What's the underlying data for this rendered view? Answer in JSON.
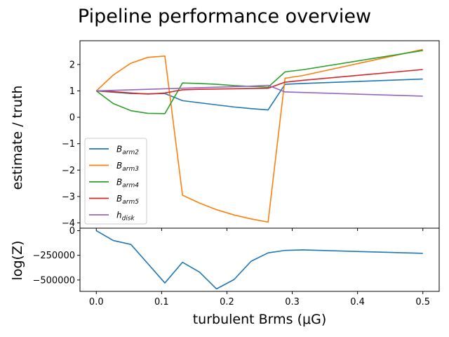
{
  "chart_data": [
    {
      "type": "line",
      "title": "Pipeline performance overview",
      "xlabel": "",
      "ylabel": "estimate / truth",
      "xlim": [
        -0.025,
        0.525
      ],
      "ylim": [
        -4.2,
        2.9
      ],
      "yticks": [
        -4,
        -3,
        -2,
        -1,
        0,
        1,
        2
      ],
      "ytick_labels": [
        "−4",
        "−3",
        "−2",
        "−1",
        "0",
        "1",
        "2"
      ],
      "grid": false,
      "legend": "lower-left",
      "x": [
        0,
        0.026,
        0.053,
        0.079,
        0.105,
        0.132,
        0.158,
        0.184,
        0.211,
        0.237,
        0.263,
        0.289,
        0.316,
        0.5
      ],
      "series": [
        {
          "name": "B",
          "sub": "arm2",
          "color": "#1f77b4",
          "values": [
            1.0,
            0.95,
            0.9,
            0.89,
            0.9,
            0.63,
            0.55,
            0.47,
            0.39,
            0.33,
            0.28,
            1.25,
            1.28,
            1.45
          ]
        },
        {
          "name": "B",
          "sub": "arm3",
          "color": "#ff7f0e",
          "values": [
            1.0,
            1.6,
            2.05,
            2.27,
            2.32,
            -2.95,
            -3.25,
            -3.5,
            -3.7,
            -3.85,
            -3.97,
            1.48,
            1.58,
            2.57
          ]
        },
        {
          "name": "B",
          "sub": "arm4",
          "color": "#2ca02c",
          "values": [
            1.0,
            0.52,
            0.25,
            0.15,
            0.14,
            1.3,
            1.28,
            1.25,
            1.2,
            1.17,
            1.14,
            1.72,
            1.8,
            2.53
          ]
        },
        {
          "name": "B",
          "sub": "arm5",
          "color": "#d62728",
          "values": [
            1.0,
            0.97,
            0.92,
            0.88,
            0.92,
            1.04,
            1.06,
            1.07,
            1.08,
            1.09,
            1.1,
            1.33,
            1.4,
            1.81
          ]
        },
        {
          "name": "h",
          "sub": "disk",
          "color": "#9467bd",
          "values": [
            1.0,
            1.02,
            1.04,
            1.06,
            1.08,
            1.1,
            1.12,
            1.14,
            1.16,
            1.18,
            1.21,
            0.96,
            0.94,
            0.8
          ]
        }
      ]
    },
    {
      "type": "line",
      "xlabel": "turbulent Brms (μG)",
      "ylabel": "log(Z)",
      "xlim": [
        -0.025,
        0.525
      ],
      "ylim": [
        -615000,
        25000
      ],
      "xticks": [
        0,
        0.1,
        0.2,
        0.3,
        0.4,
        0.5
      ],
      "xtick_labels": [
        "0.0",
        "0.1",
        "0.2",
        "0.3",
        "0.4",
        "0.5"
      ],
      "yticks": [
        0,
        -250000,
        -500000
      ],
      "ytick_labels": [
        "0",
        "−250000",
        "−500000"
      ],
      "grid": false,
      "x": [
        0,
        0.026,
        0.053,
        0.079,
        0.105,
        0.132,
        0.158,
        0.184,
        0.211,
        0.237,
        0.263,
        0.289,
        0.316,
        0.5
      ],
      "series": [
        {
          "color": "#1f77b4",
          "values": [
            0,
            -100000,
            -140000,
            -335000,
            -530000,
            -320000,
            -420000,
            -590000,
            -495000,
            -310000,
            -225000,
            -200000,
            -195000,
            -230000
          ]
        }
      ]
    }
  ]
}
